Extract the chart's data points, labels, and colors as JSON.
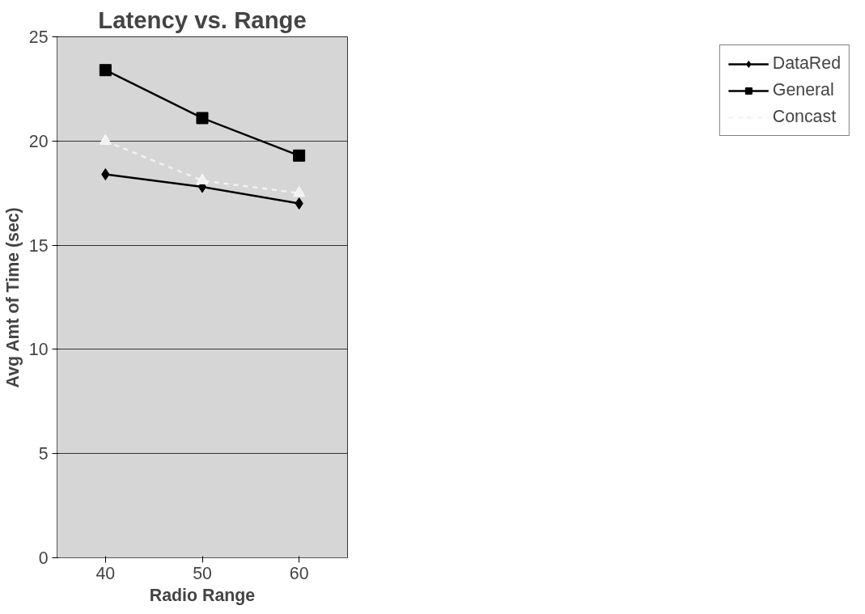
{
  "chart_data": {
    "type": "line",
    "title": "Latency vs. Range",
    "xlabel": "Radio Range",
    "ylabel": "Avg Amt of Time (sec)",
    "categories": [
      "40",
      "50",
      "60"
    ],
    "series": [
      {
        "name": "DataRed",
        "color": "#000000",
        "marker": "diamond",
        "line_style": "solid",
        "values": [
          18.4,
          17.8,
          17.0
        ]
      },
      {
        "name": "General",
        "color": "#000000",
        "marker": "square",
        "line_style": "solid",
        "values": [
          23.4,
          21.1,
          19.3
        ]
      },
      {
        "name": "Concast",
        "color": "#f2f2f2",
        "marker": "triangle",
        "line_style": "dashed",
        "values": [
          20.0,
          18.1,
          17.5
        ]
      }
    ],
    "ylim": [
      0,
      25
    ],
    "yticks": [
      0,
      5,
      10,
      15,
      20,
      25
    ],
    "grid": "y",
    "legend": "right"
  }
}
